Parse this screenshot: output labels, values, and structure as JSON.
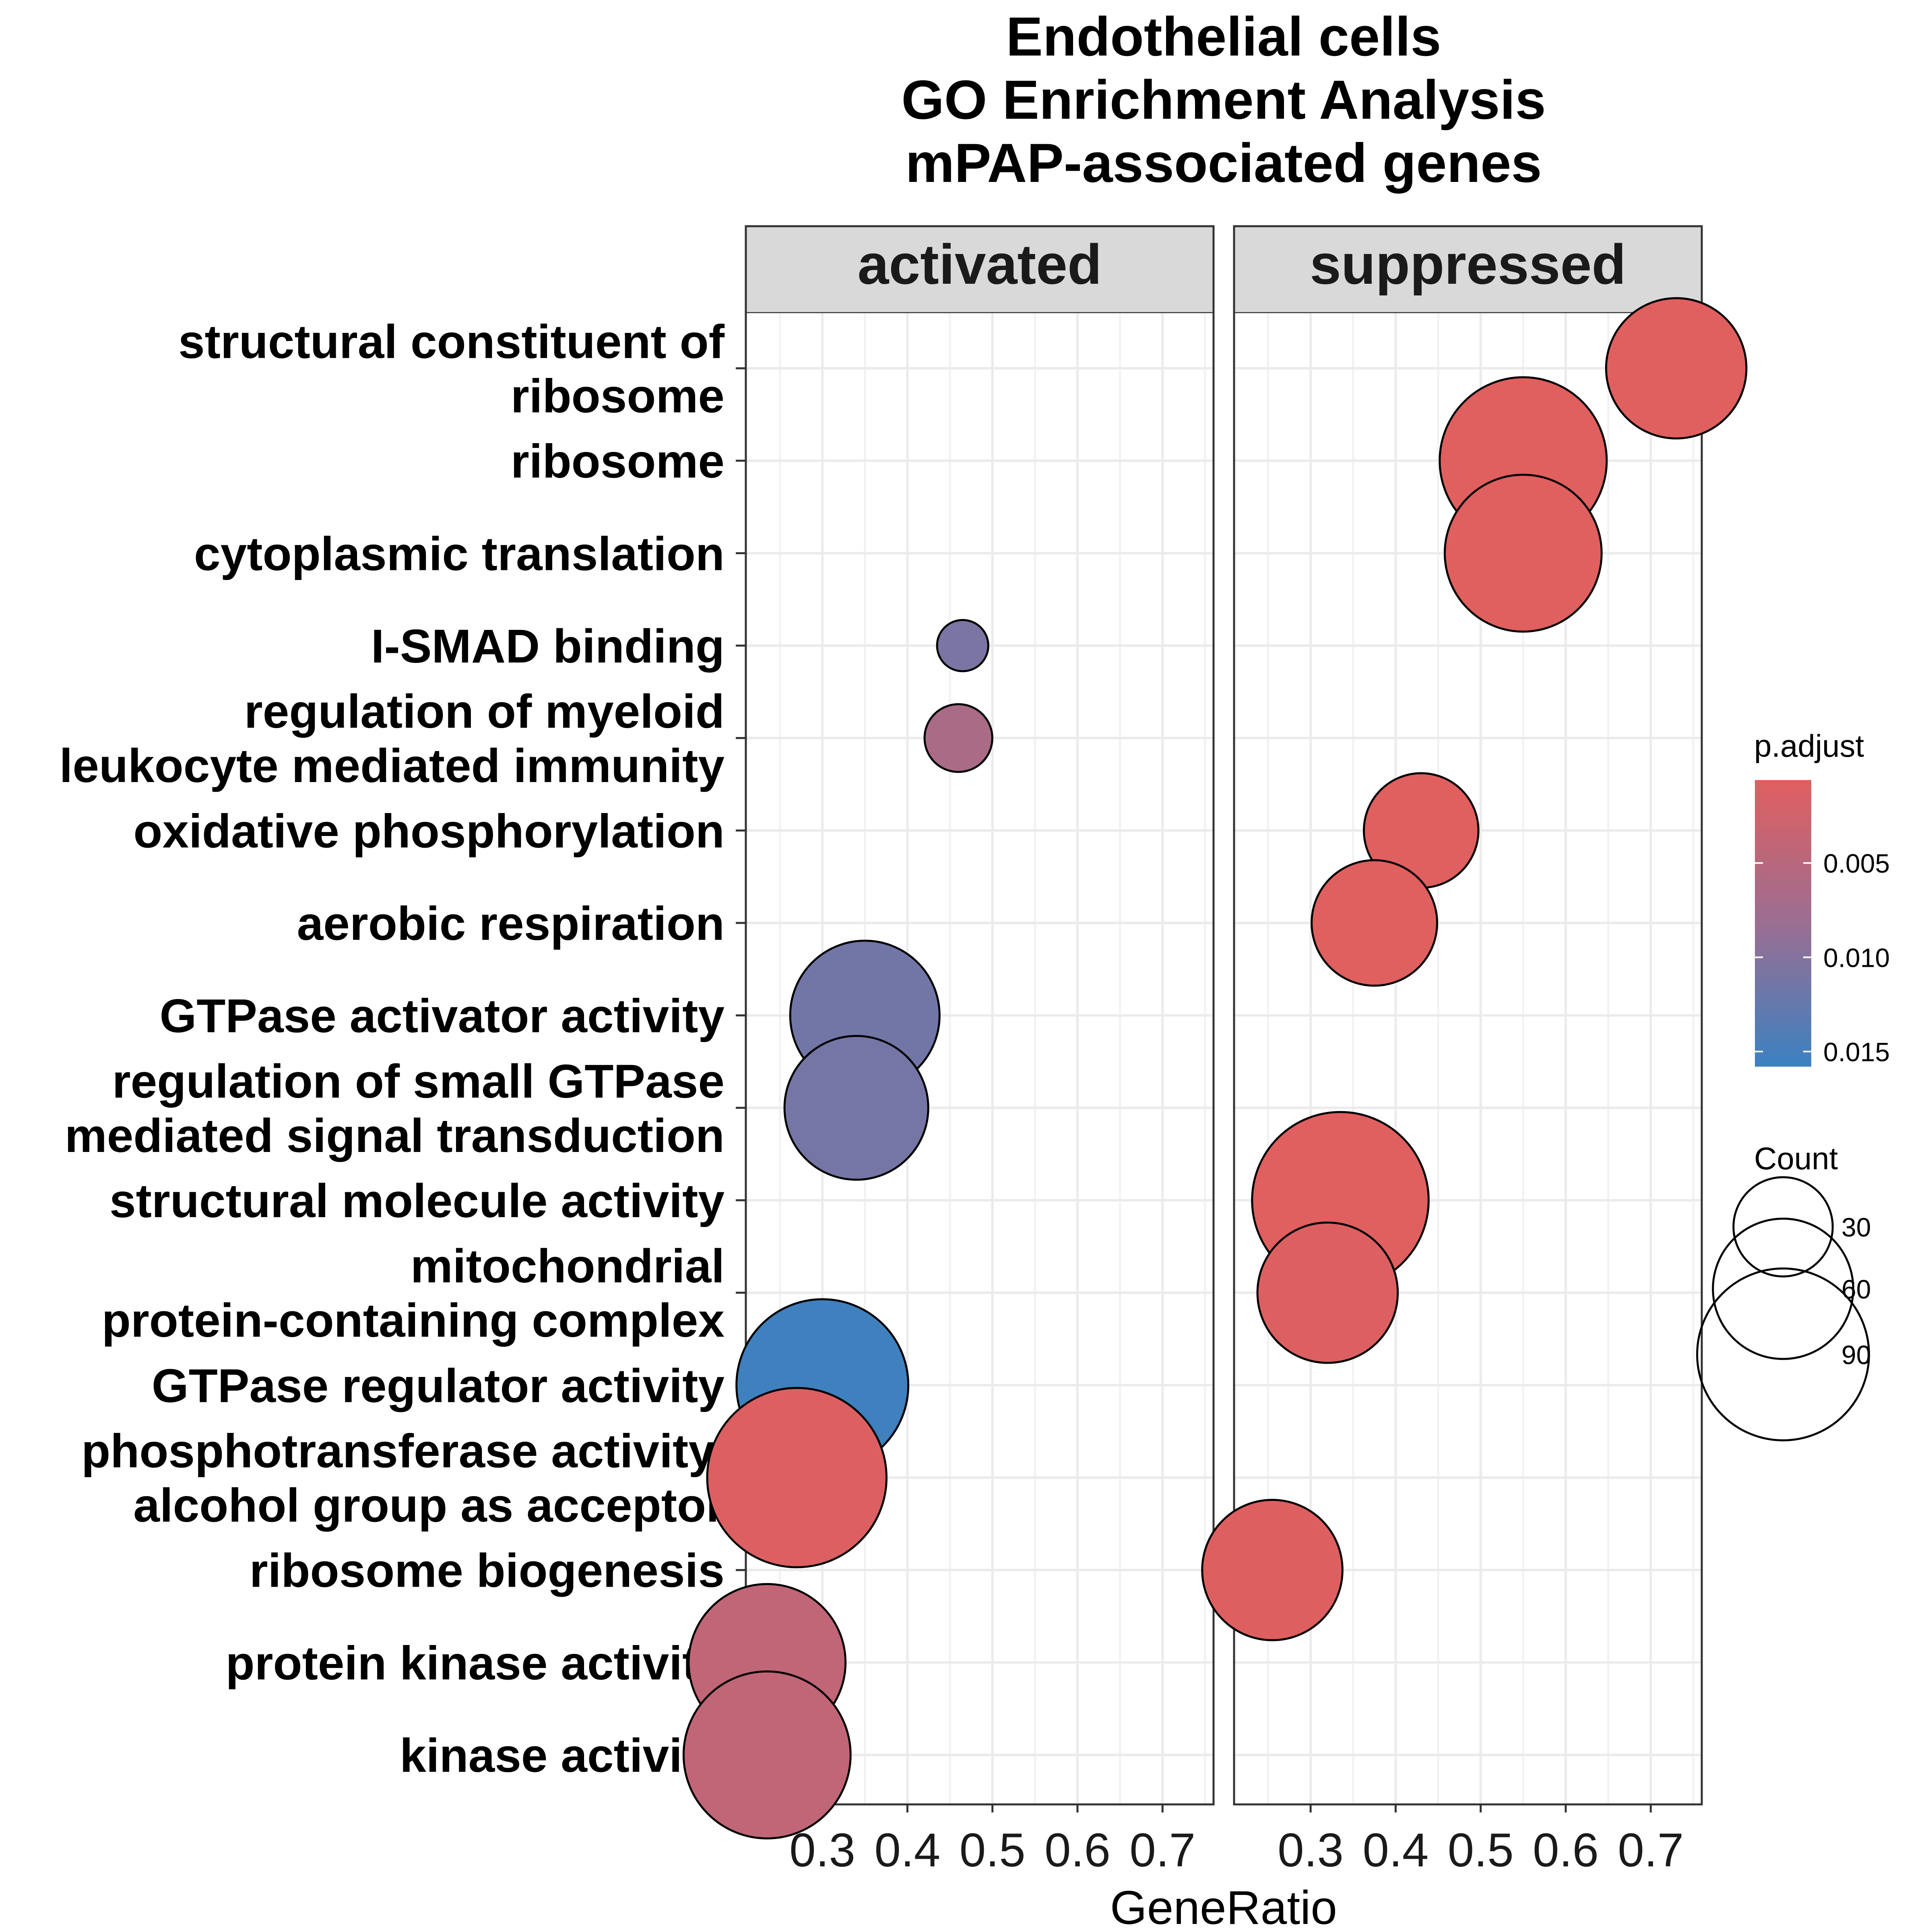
{
  "chart_data": {
    "type": "scatter",
    "title": [
      "Endothelial cells",
      "GO Enrichment Analysis",
      "mPAP-associated genes"
    ],
    "xlabel": "GeneRatio",
    "ylabel": "",
    "x_ticks": [
      "0.3",
      "0.4",
      "0.5",
      "0.6",
      "0.7"
    ],
    "x_tick_values": [
      0.3,
      0.4,
      0.5,
      0.6,
      0.7
    ],
    "xlim": [
      0.21,
      0.76
    ],
    "grid": true,
    "facets": [
      "activated",
      "suppressed"
    ],
    "categories": [
      [
        "structural constituent of",
        "ribosome"
      ],
      [
        "ribosome"
      ],
      [
        "cytoplasmic translation"
      ],
      [
        "I-SMAD binding"
      ],
      [
        "regulation of myeloid",
        "leukocyte mediated immunity"
      ],
      [
        "oxidative phosphorylation"
      ],
      [
        "aerobic respiration"
      ],
      [
        "GTPase activator activity"
      ],
      [
        "regulation of small GTPase",
        "mediated signal transduction"
      ],
      [
        "structural molecule activity"
      ],
      [
        "mitochondrial",
        "protein-containing complex"
      ],
      [
        "GTPase regulator activity"
      ],
      [
        "phosphotransferase activity,",
        "alcohol group as acceptor"
      ],
      [
        "ribosome biogenesis"
      ],
      [
        "protein kinase activity"
      ],
      [
        "kinase activity"
      ]
    ],
    "points": [
      {
        "facet": "suppressed",
        "category": 0,
        "x": 0.73,
        "count": 60,
        "p_adjust": 0.0006
      },
      {
        "facet": "suppressed",
        "category": 1,
        "x": 0.55,
        "count": 85,
        "p_adjust": 0.0006
      },
      {
        "facet": "suppressed",
        "category": 2,
        "x": 0.55,
        "count": 75,
        "p_adjust": 0.0006
      },
      {
        "facet": "activated",
        "category": 3,
        "x": 0.465,
        "count": 8,
        "p_adjust": 0.0108
      },
      {
        "facet": "activated",
        "category": 4,
        "x": 0.46,
        "count": 14,
        "p_adjust": 0.0065
      },
      {
        "facet": "suppressed",
        "category": 5,
        "x": 0.43,
        "count": 40,
        "p_adjust": 0.0006
      },
      {
        "facet": "suppressed",
        "category": 6,
        "x": 0.375,
        "count": 48,
        "p_adjust": 0.0006
      },
      {
        "facet": "activated",
        "category": 7,
        "x": 0.35,
        "count": 68,
        "p_adjust": 0.0115
      },
      {
        "facet": "activated",
        "category": 8,
        "x": 0.34,
        "count": 63,
        "p_adjust": 0.0112
      },
      {
        "facet": "suppressed",
        "category": 9,
        "x": 0.335,
        "count": 95,
        "p_adjust": 0.0006
      },
      {
        "facet": "suppressed",
        "category": 10,
        "x": 0.32,
        "count": 60,
        "p_adjust": 0.001
      },
      {
        "facet": "activated",
        "category": 11,
        "x": 0.3,
        "count": 90,
        "p_adjust": 0.0155
      },
      {
        "facet": "activated",
        "category": 12,
        "x": 0.27,
        "count": 98,
        "p_adjust": 0.001
      },
      {
        "facet": "suppressed",
        "category": 13,
        "x": 0.255,
        "count": 60,
        "p_adjust": 0.0008
      },
      {
        "facet": "activated",
        "category": 14,
        "x": 0.235,
        "count": 75,
        "p_adjust": 0.004
      },
      {
        "facet": "activated",
        "category": 15,
        "x": 0.235,
        "count": 85,
        "p_adjust": 0.004
      }
    ],
    "color_legend": {
      "title": "p.adjust",
      "tick_labels": [
        "0.005",
        "0.010",
        "0.015"
      ],
      "tick_values": [
        0.005,
        0.01,
        0.015
      ],
      "range": [
        0.0006,
        0.0158
      ],
      "low_color": "#e05f5f",
      "high_color": "#3b81c1"
    },
    "size_legend": {
      "title": "Count",
      "labels": [
        "30",
        "60",
        "90"
      ],
      "values": [
        30,
        60,
        90
      ]
    }
  }
}
